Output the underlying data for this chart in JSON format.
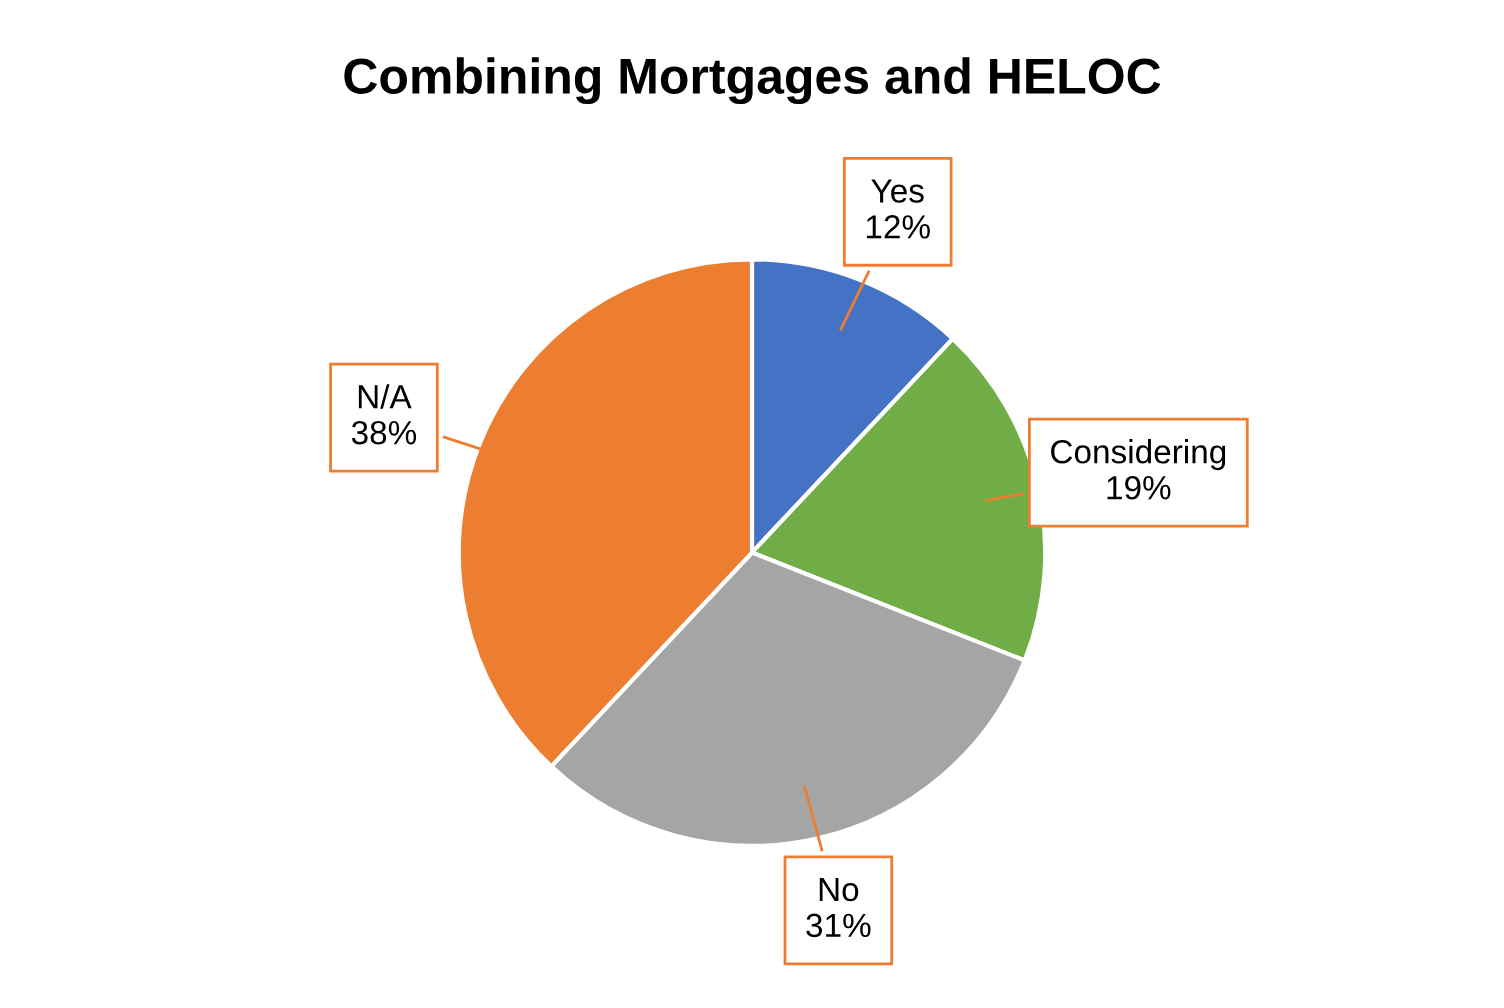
{
  "chart_data": {
    "type": "pie",
    "title": "Combining Mortgages and HELOC",
    "categories": [
      "Yes",
      "Considering",
      "No",
      "N/A"
    ],
    "values": [
      12,
      19,
      31,
      38
    ],
    "value_labels": [
      "12%",
      "19%",
      "31%",
      "38%"
    ],
    "colors": [
      "#4472c4",
      "#70ad47",
      "#a5a5a5",
      "#ed7d31"
    ],
    "legend": false
  }
}
